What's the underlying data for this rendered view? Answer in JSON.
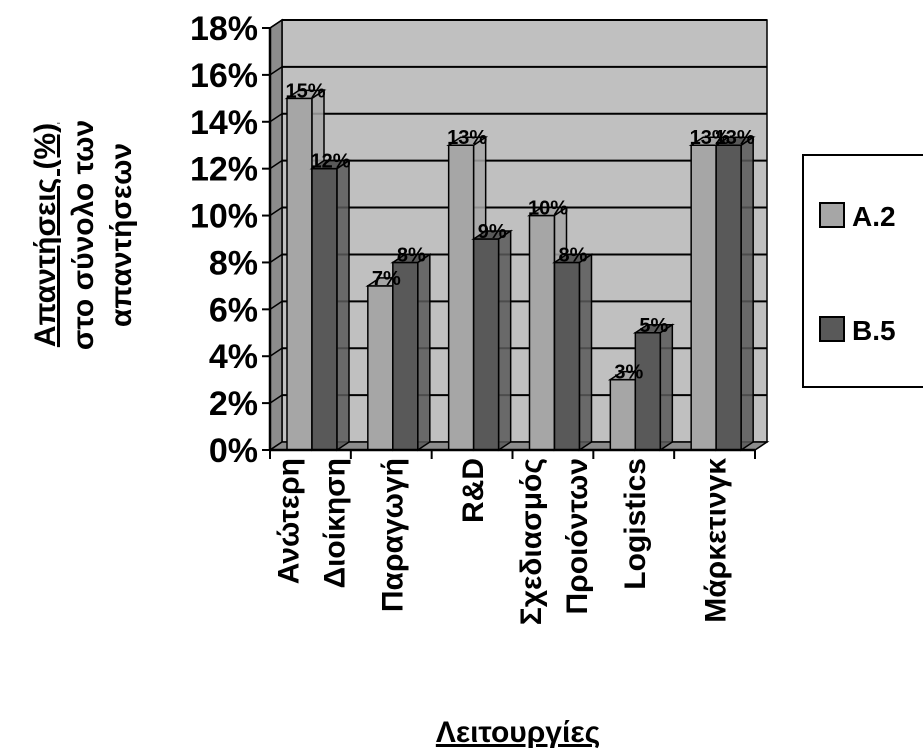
{
  "chart_data": {
    "type": "bar",
    "categories": [
      [
        "Ανώτερη",
        "Διοίκηση"
      ],
      [
        "Παραγωγή"
      ],
      [
        "R&D"
      ],
      [
        "Σχεδιασμός",
        "Προιόντων"
      ],
      [
        "Logistics"
      ],
      [
        "Μάρκετινγκ"
      ]
    ],
    "series": [
      {
        "name": "A.2",
        "values": [
          15,
          7,
          13,
          10,
          3,
          13
        ],
        "labels": [
          "15%",
          "7%",
          "13%",
          "10%",
          "3%",
          "13%"
        ]
      },
      {
        "name": "B.5",
        "values": [
          12,
          8,
          9,
          8,
          5,
          13
        ],
        "labels": [
          "12%",
          "8%",
          "9%",
          "8%",
          "5%",
          "13%"
        ]
      }
    ],
    "ylim": [
      0,
      18
    ],
    "yticks": [
      "0%",
      "2%",
      "4%",
      "6%",
      "8%",
      "10%",
      "12%",
      "14%",
      "16%",
      "18%"
    ],
    "ylabel_underlined": "Απαντήσεις (%)",
    "ylabel_lines": [
      "στο σύνολο των",
      "απαντήσεων"
    ],
    "xlabel": "Λειτουργίες",
    "grid": true,
    "legend_position": "right",
    "colors": {
      "plot_background": "#c0c0c0",
      "series_a": "#a6a6a6",
      "series_b": "#595959",
      "wall": "#8c8c8c",
      "grid": "#000000"
    }
  }
}
